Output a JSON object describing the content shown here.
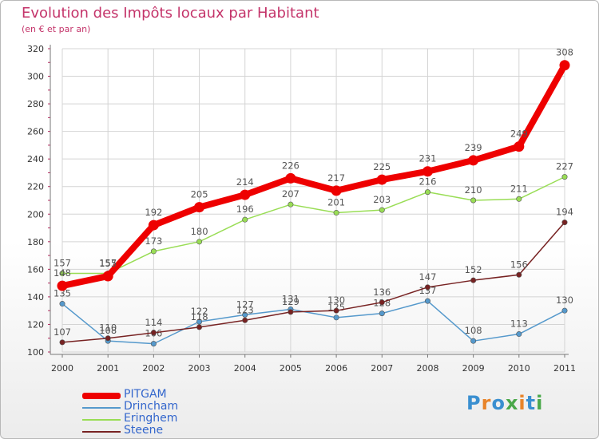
{
  "title": "Evolution des Impôts locaux par Habitant",
  "subtitle": "(en € et par an)",
  "logo": "Proxiti",
  "chart_data": {
    "type": "line",
    "x": [
      "2000",
      "2001",
      "2002",
      "2003",
      "2004",
      "2005",
      "2006",
      "2007",
      "2008",
      "2009",
      "2010",
      "2011"
    ],
    "ylim": [
      100,
      320
    ],
    "yticks": [
      100,
      120,
      140,
      160,
      180,
      200,
      220,
      240,
      260,
      280,
      300,
      320
    ],
    "series": [
      {
        "name": "Eringhem",
        "color": "#99dd55",
        "values": [
          157,
          157,
          173,
          180,
          196,
          207,
          201,
          203,
          216,
          210,
          211,
          227
        ]
      },
      {
        "name": "Drincham",
        "color": "#5599cc",
        "values": [
          135,
          108,
          106,
          122,
          127,
          131,
          125,
          128,
          137,
          108,
          113,
          130
        ]
      },
      {
        "name": "Steene",
        "color": "#772222",
        "values": [
          107,
          110,
          114,
          118,
          123,
          129,
          130,
          136,
          147,
          152,
          156,
          194
        ]
      },
      {
        "name": "PITGAM",
        "color": "#ee0000",
        "values": [
          148,
          155,
          192,
          205,
          214,
          226,
          217,
          225,
          231,
          239,
          249,
          308
        ]
      }
    ],
    "legend_order": [
      "PITGAM",
      "Drincham",
      "Eringhem",
      "Steene"
    ]
  }
}
